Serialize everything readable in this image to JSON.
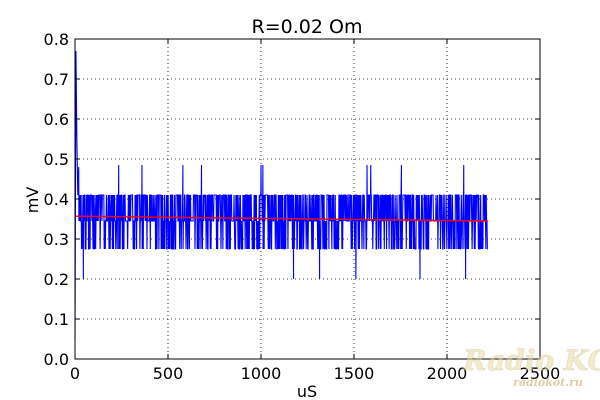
{
  "chart_data": {
    "type": "line",
    "title": "R=0.02 Om",
    "xlabel": "uS",
    "ylabel": "mV",
    "xlim": [
      0,
      2500
    ],
    "ylim": [
      0,
      0.8
    ],
    "grid": true,
    "x_ticks": [
      0,
      500,
      1000,
      1500,
      2000,
      2500
    ],
    "y_ticks": [
      0.0,
      0.1,
      0.2,
      0.3,
      0.4,
      0.5,
      0.6,
      0.7,
      0.8
    ],
    "x_tick_labels": [
      "0",
      "500",
      "1000",
      "1500",
      "2000",
      "2500"
    ],
    "y_tick_labels": [
      "0.0",
      "0.1",
      "0.2",
      "0.3",
      "0.4",
      "0.5",
      "0.6",
      "0.7",
      "0.8"
    ],
    "series": [
      {
        "color": "#0000ff",
        "style": "noisy signal quantized between levels",
        "x_range": [
          0,
          2220
        ],
        "levels": [
          0.2,
          0.275,
          0.345,
          0.41,
          0.485
        ],
        "initial_spike": {
          "x": [
            0,
            5,
            10,
            15,
            20
          ],
          "y": [
            0.05,
            0.77,
            0.55,
            0.41,
            0.48
          ]
        },
        "notable_points": [
          {
            "x": 45,
            "y": 0.2
          },
          {
            "x": 235,
            "y": 0.485
          },
          {
            "x": 360,
            "y": 0.485
          },
          {
            "x": 580,
            "y": 0.485
          },
          {
            "x": 680,
            "y": 0.485
          },
          {
            "x": 1000,
            "y": 0.485
          },
          {
            "x": 1010,
            "y": 0.485
          },
          {
            "x": 1175,
            "y": 0.2
          },
          {
            "x": 1315,
            "y": 0.2
          },
          {
            "x": 1510,
            "y": 0.2
          },
          {
            "x": 1570,
            "y": 0.485
          },
          {
            "x": 1590,
            "y": 0.485
          },
          {
            "x": 1755,
            "y": 0.485
          },
          {
            "x": 1855,
            "y": 0.2
          },
          {
            "x": 2090,
            "y": 0.485
          },
          {
            "x": 2100,
            "y": 0.2
          }
        ]
      },
      {
        "color": "#ff0000",
        "style": "mean trend line",
        "x": [
          0,
          2220
        ],
        "y": [
          0.357,
          0.345
        ]
      }
    ]
  },
  "watermark": {
    "logo_text": "Radio KOT",
    "url_text": "radiokot.ru"
  }
}
